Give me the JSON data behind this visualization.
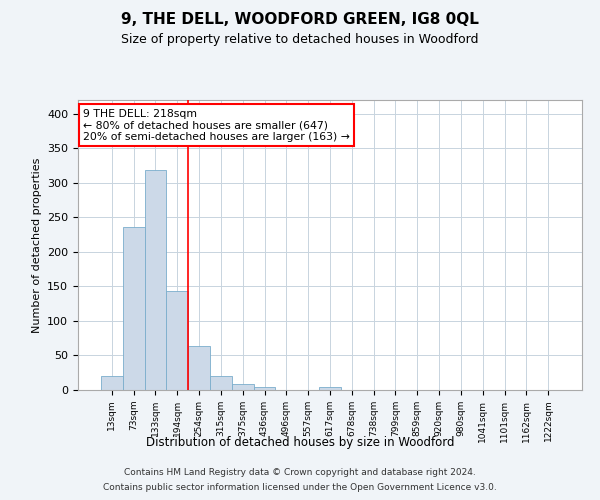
{
  "title": "9, THE DELL, WOODFORD GREEN, IG8 0QL",
  "subtitle": "Size of property relative to detached houses in Woodford",
  "xlabel": "Distribution of detached houses by size in Woodford",
  "ylabel": "Number of detached properties",
  "bar_labels": [
    "13sqm",
    "73sqm",
    "133sqm",
    "194sqm",
    "254sqm",
    "315sqm",
    "375sqm",
    "436sqm",
    "496sqm",
    "557sqm",
    "617sqm",
    "678sqm",
    "738sqm",
    "799sqm",
    "859sqm",
    "920sqm",
    "980sqm",
    "1041sqm",
    "1101sqm",
    "1162sqm",
    "1222sqm"
  ],
  "bar_values": [
    20,
    236,
    318,
    143,
    64,
    20,
    8,
    5,
    0,
    0,
    5,
    0,
    0,
    0,
    0,
    0,
    0,
    0,
    0,
    0,
    0
  ],
  "bar_color": "#ccd9e8",
  "bar_edge_color": "#7aadcc",
  "vline_x": 3.5,
  "vline_color": "red",
  "ylim": [
    0,
    420
  ],
  "yticks": [
    0,
    50,
    100,
    150,
    200,
    250,
    300,
    350,
    400
  ],
  "annotation_title": "9 THE DELL: 218sqm",
  "annotation_line1": "← 80% of detached houses are smaller (647)",
  "annotation_line2": "20% of semi-detached houses are larger (163) →",
  "annotation_box_color": "white",
  "annotation_box_edge_color": "red",
  "footer_line1": "Contains HM Land Registry data © Crown copyright and database right 2024.",
  "footer_line2": "Contains public sector information licensed under the Open Government Licence v3.0.",
  "background_color": "#f0f4f8",
  "plot_background_color": "white",
  "grid_color": "#c8d4de"
}
